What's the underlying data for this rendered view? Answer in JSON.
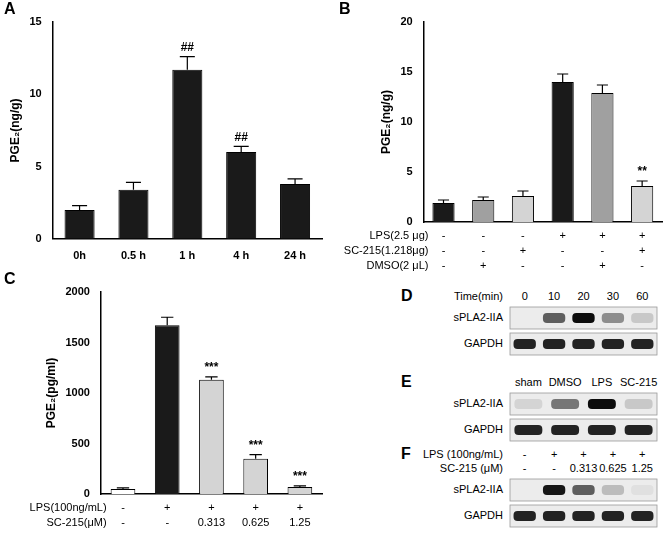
{
  "chart_data": [
    {
      "type": "bar",
      "title": "A",
      "y_label": "PGE₂(ng/g)",
      "categories": [
        "0h",
        "0.5 h",
        "1 h",
        "4 h",
        "24 h"
      ],
      "values": [
        2.0,
        3.4,
        11.7,
        6.0,
        3.8
      ],
      "errors": [
        0.3,
        0.5,
        0.9,
        0.4,
        0.35
      ],
      "annotations": [
        null,
        null,
        "##",
        "##",
        null
      ],
      "color": "#1a1a1a",
      "ylim": [
        0,
        15
      ],
      "yticks": [
        0,
        5,
        10,
        15
      ],
      "grid": false
    },
    {
      "type": "bar",
      "title": "B",
      "y_label": "PGE₂(ng/g)",
      "categories": [
        null,
        null,
        null,
        null,
        null,
        null
      ],
      "values": [
        1.9,
        2.2,
        2.6,
        14.0,
        12.9,
        3.6
      ],
      "errors": [
        0.3,
        0.3,
        0.5,
        0.8,
        0.8,
        0.5
      ],
      "annotations": [
        null,
        null,
        null,
        null,
        null,
        "**"
      ],
      "colors": [
        "#1a1a1a",
        "#a0a0a0",
        "#d4d4d4",
        "#1a1a1a",
        "#a0a0a0",
        "#d4d4d4"
      ],
      "conditions": [
        {
          "label": "LPS(2.5 μg)",
          "marks": [
            "-",
            "-",
            "-",
            "+",
            "+",
            "+"
          ]
        },
        {
          "label": "SC-215(1.218μg)",
          "marks": [
            "-",
            "-",
            "+",
            "-",
            "-",
            "+"
          ]
        },
        {
          "label": "DMSO(2 μL)",
          "marks": [
            "-",
            "+",
            "-",
            "-",
            "+",
            "-"
          ]
        }
      ],
      "tick_labels": "y",
      "ylim": [
        0,
        20
      ],
      "yticks": [
        0,
        5,
        10,
        15,
        20
      ],
      "grid": false
    },
    {
      "type": "bar",
      "title": "C",
      "y_label": "PGE₂(pg/ml)",
      "categories": [
        null,
        null,
        null,
        null,
        null
      ],
      "values": [
        50,
        1670,
        1130,
        350,
        70
      ],
      "errors": [
        10,
        80,
        30,
        40,
        10
      ],
      "annotations": [
        null,
        null,
        "***",
        "***",
        "***"
      ],
      "colors": [
        "#ffffff",
        "#1a1a1a",
        "#d4d4d4",
        "#d4d4d4",
        "#d4d4d4"
      ],
      "conditions": [
        {
          "label": "LPS(100ng/mL)",
          "marks": [
            "-",
            "+",
            "+",
            "+",
            "+"
          ]
        },
        {
          "label": "SC-215(μM)",
          "marks": [
            "-",
            "-",
            "0.313",
            "0.625",
            "1.25"
          ]
        }
      ],
      "tick_labels": "y",
      "ylim": [
        0,
        2000
      ],
      "yticks": [
        0,
        500,
        1000,
        1500,
        2000
      ],
      "grid": false
    }
  ],
  "blots": [
    {
      "title": "D",
      "conditions": [
        {
          "label": "Time(min)",
          "marks": [
            "0",
            "10",
            "20",
            "30",
            "60"
          ]
        }
      ],
      "rows": [
        {
          "name": "sPLA2-IIA",
          "intensity": [
            0.0,
            0.6,
            0.95,
            0.4,
            0.15
          ]
        },
        {
          "name": "GAPDH",
          "intensity": [
            0.85,
            0.85,
            0.85,
            0.85,
            0.85
          ]
        }
      ]
    },
    {
      "title": "E",
      "conditions": [
        {
          "marks": [
            "sham",
            "DMSO",
            "LPS",
            "SC-215"
          ]
        }
      ],
      "rows": [
        {
          "name": "sPLA2-IIA",
          "intensity": [
            0.1,
            0.5,
            0.95,
            0.15
          ]
        },
        {
          "name": "GAPDH",
          "intensity": [
            0.85,
            0.85,
            0.85,
            0.85
          ]
        }
      ]
    },
    {
      "title": "F",
      "conditions": [
        {
          "label": "LPS (100ng/mL)",
          "marks": [
            "-",
            "+",
            "+",
            "+",
            "+"
          ]
        },
        {
          "label": "SC-215 (μM)",
          "marks": [
            "-",
            "-",
            "0.313",
            "0.625",
            "1.25"
          ]
        }
      ],
      "rows": [
        {
          "name": "sPLA2-IIA",
          "intensity": [
            0.0,
            0.9,
            0.6,
            0.2,
            0.05
          ]
        },
        {
          "name": "GAPDH",
          "intensity": [
            0.85,
            0.85,
            0.85,
            0.85,
            0.85
          ]
        }
      ]
    }
  ]
}
